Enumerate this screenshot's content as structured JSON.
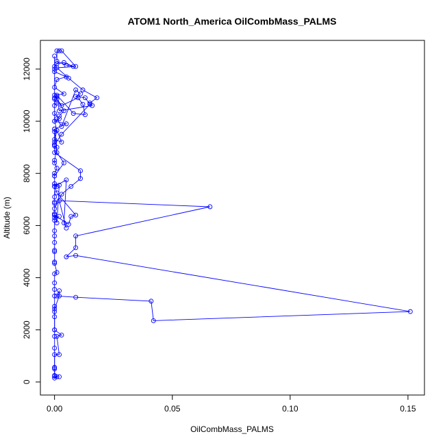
{
  "chart_data": {
    "type": "line",
    "title": "ATOM1 North_America OilCombMass_PALMS",
    "xlabel": "OilCombMass_PALMS",
    "ylabel": "Altitude (m)",
    "xlim": [
      -0.006,
      0.157
    ],
    "ylim": [
      -500,
      13100
    ],
    "x_ticks": [
      0.0,
      0.05,
      0.1,
      0.15
    ],
    "x_tick_labels": [
      "0.00",
      "0.05",
      "0.10",
      "0.15"
    ],
    "y_ticks": [
      0,
      2000,
      4000,
      6000,
      8000,
      10000,
      12000
    ],
    "y_tick_labels": [
      "0",
      "2000",
      "4000",
      "6000",
      "8000",
      "10000",
      "12000"
    ],
    "grid": false,
    "marker": "open-circle",
    "color": "#0000ff",
    "series": [
      {
        "x": [
          0.002,
          0.0,
          0.0,
          0.0,
          0.0,
          0.002,
          0.001,
          0.003,
          0.0,
          0.0,
          0.0,
          0.0,
          0.0,
          0.0,
          0.0,
          0.0,
          0.001,
          0.0,
          0.0,
          0.0,
          0.0,
          0.0,
          0.0,
          0.0,
          0.0,
          0.0,
          0.0,
          0.0,
          0.0,
          0.0,
          0.0,
          0.001,
          0.0,
          0.0,
          0.0,
          0.001,
          0.0,
          0.0,
          0.001,
          0.0,
          0.0,
          0.0,
          0.001,
          0.003,
          0.0,
          0.0,
          0.005,
          0.0,
          0.002,
          0.0,
          0.0,
          0.001,
          0.0,
          0.0,
          0.0,
          0.004,
          0.0,
          0.001,
          0.005,
          0.0,
          0.0,
          0.001,
          0.004,
          0.008,
          0.005,
          0.001,
          0.001,
          0.002,
          0.003,
          0.009,
          0.001,
          0.006,
          0.012,
          0.018,
          0.015,
          0.016,
          0.002,
          0.001,
          0.001,
          0.008,
          0.013,
          0.012,
          0.01,
          0.003,
          0.001,
          0.004,
          0.002,
          0.001,
          0.003,
          0.009,
          0.011,
          0.009,
          0.013,
          0.015,
          0.003,
          0.0,
          0.0,
          0.001,
          0.004,
          0.0,
          0.0,
          0.001,
          0.009,
          0.007,
          0.006,
          0.0,
          0.0,
          0.003,
          0.007,
          0.011,
          0.011,
          0.0,
          0.0,
          0.0,
          0.001,
          0.0,
          0.0,
          0.0
        ],
        "y": [
          200,
          220,
          500,
          560,
          1050,
          1050,
          1750,
          1800,
          2000,
          2500,
          2700,
          2900,
          3300,
          3550,
          3800,
          4150,
          4200,
          4550,
          4600,
          5000,
          5050,
          5350,
          5600,
          5800,
          6200,
          6400,
          6450,
          6850,
          6900,
          7100,
          7500,
          7500,
          7600,
          7900,
          8000,
          8200,
          8400,
          8500,
          9000,
          9050,
          9100,
          9600,
          9650,
          9200,
          9300,
          9700,
          9900,
          10000,
          10100,
          10300,
          10600,
          10700,
          10850,
          10900,
          11000,
          11050,
          11300,
          11600,
          11700,
          11900,
          12100,
          12200,
          12250,
          12100,
          12150,
          12300,
          12700,
          12700,
          12700,
          12100,
          12050,
          11650,
          11200,
          10900,
          10700,
          10600,
          10400,
          10950,
          11000,
          10300,
          10250,
          10650,
          10900,
          10600,
          10850,
          10400,
          10200,
          10100,
          9800,
          11200,
          11050,
          10950,
          10900,
          10650,
          9500,
          9100,
          9700,
          8800,
          8400,
          7900,
          7500,
          7250,
          6400,
          6350,
          6050,
          6400,
          6650,
          7200,
          7500,
          7800,
          8100,
          8800,
          9100,
          9200,
          9650,
          10000,
          12000,
          12500
        ]
      },
      {
        "x": [
          0.002,
          0.0,
          0.0,
          0.001,
          0.002,
          0.0,
          0.0,
          0.005,
          0.004,
          0.005,
          0.002,
          0.066,
          0.009,
          0.009,
          0.005,
          0.009,
          0.151,
          0.042,
          0.041,
          0.009,
          0.001,
          0.002,
          0.002,
          0.0,
          0.0,
          0.0,
          0.0,
          0.0,
          0.0,
          0.0,
          0.001
        ],
        "y": [
          6350,
          6300,
          6450,
          6100,
          7550,
          7600,
          7500,
          7750,
          6100,
          5900,
          6950,
          6720,
          5600,
          5150,
          4800,
          4850,
          2700,
          2350,
          3100,
          3250,
          3300,
          3500,
          3300,
          2800,
          2000,
          1750,
          1300,
          550,
          250,
          150,
          200
        ]
      }
    ]
  }
}
